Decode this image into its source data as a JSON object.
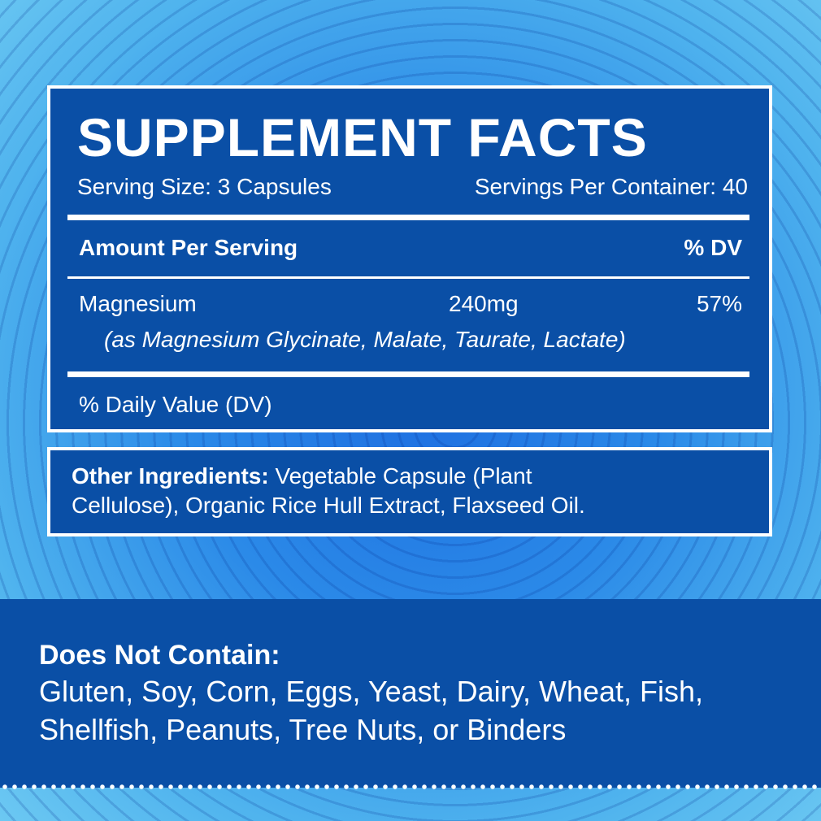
{
  "facts": {
    "title": "SUPPLEMENT FACTS",
    "serving_size": "Serving Size: 3 Capsules",
    "servings_per_container": "Servings Per Container: 40",
    "amount_header": "Amount Per Serving",
    "dv_header": "% DV",
    "ingredient": {
      "name": "Magnesium",
      "amount": "240mg",
      "dv": "57%",
      "source": "(as Magnesium Glycinate, Malate, Taurate, Lactate)"
    },
    "footnote": "% Daily Value (DV)"
  },
  "other": {
    "label": "Other Ingredients:",
    "line1": " Vegetable Capsule (Plant",
    "line2": "Cellulose), Organic Rice Hull Extract, Flaxseed Oil."
  },
  "free_from": {
    "title": "Does Not Contain:",
    "line1": "Gluten, Soy, Corn, Eggs, Yeast, Dairy, Wheat, Fish,",
    "line2": "Shellfish, Peanuts, Tree Nuts, or Binders"
  },
  "colors": {
    "panel": "#0a4fa6",
    "background": "#4fb3ee"
  }
}
